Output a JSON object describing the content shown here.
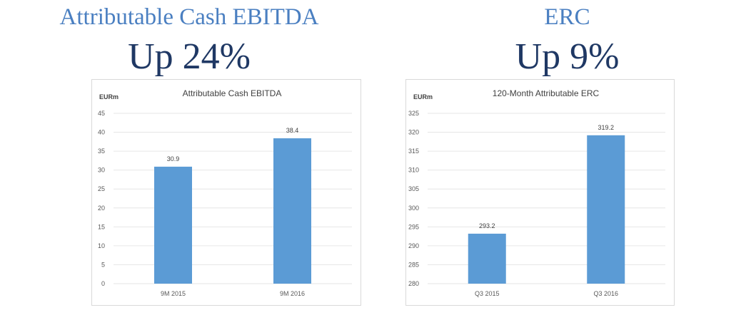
{
  "panels": [
    {
      "subtitle": "Attributable Cash EBITDA",
      "headline": "Up 24%"
    },
    {
      "subtitle": "ERC",
      "headline": "Up 9%"
    }
  ],
  "colors": {
    "bar": "#5b9bd5",
    "subtitle": "#4a7fc1",
    "headline": "#1f3864"
  },
  "chart_data": [
    {
      "type": "bar",
      "title": "Attributable Cash EBITDA",
      "xlabel": "",
      "ylabel": "EURm",
      "categories": [
        "9M 2015",
        "9M 2016"
      ],
      "values": [
        30.9,
        38.4
      ],
      "data_labels": [
        "30.9",
        "38.4"
      ],
      "ylim": [
        0,
        45
      ],
      "yticks": [
        0,
        5,
        10,
        15,
        20,
        25,
        30,
        35,
        40,
        45
      ],
      "grid": true
    },
    {
      "type": "bar",
      "title": "120-Month Attributable ERC",
      "xlabel": "",
      "ylabel": "EURm",
      "categories": [
        "Q3 2015",
        "Q3 2016"
      ],
      "values": [
        293.2,
        319.2
      ],
      "data_labels": [
        "293.2",
        "319.2"
      ],
      "ylim": [
        280,
        325
      ],
      "yticks": [
        280,
        285,
        290,
        295,
        300,
        305,
        310,
        315,
        320,
        325
      ],
      "grid": true
    }
  ]
}
